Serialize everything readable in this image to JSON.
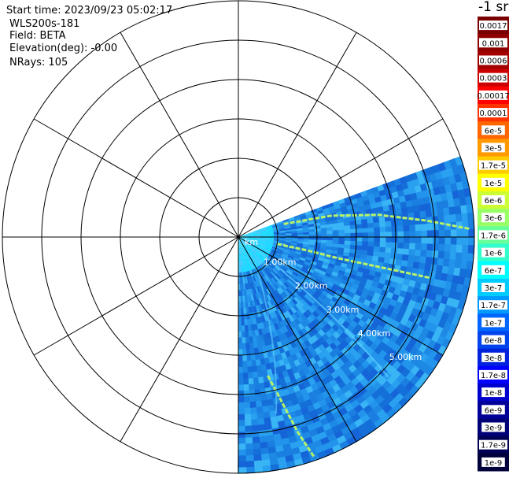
{
  "info": {
    "start_time": "Start time: 2023/09/23 05:02:17",
    "instrument": "WLS200s-181",
    "field": "Field: BETA",
    "elevation": "Elevation(deg): -0.00",
    "nrays": "NRays: 105"
  },
  "colorbar": {
    "unit_label": "-1 sr",
    "ticks": [
      {
        "label": "0.0017",
        "color": "#7a0000"
      },
      {
        "label": "0.001",
        "color": "#8f0000"
      },
      {
        "label": "0.0006",
        "color": "#a30000"
      },
      {
        "label": "0.0003",
        "color": "#cc0000"
      },
      {
        "label": "0.00017",
        "color": "#ff0000"
      },
      {
        "label": "0.0001",
        "color": "#ff3300"
      },
      {
        "label": "6e-5",
        "color": "#ff6600"
      },
      {
        "label": "3e-5",
        "color": "#ff9900"
      },
      {
        "label": "1.7e-5",
        "color": "#ffcc00"
      },
      {
        "label": "1e-5",
        "color": "#ffff00"
      },
      {
        "label": "6e-6",
        "color": "#ccff33"
      },
      {
        "label": "3e-6",
        "color": "#99ff66"
      },
      {
        "label": "1.7e-6",
        "color": "#66ff99"
      },
      {
        "label": "1e-6",
        "color": "#33ffcc"
      },
      {
        "label": "6e-7",
        "color": "#00ffff"
      },
      {
        "label": "3e-7",
        "color": "#00ccff"
      },
      {
        "label": "1.7e-7",
        "color": "#0099ff"
      },
      {
        "label": "1e-7",
        "color": "#0066ff"
      },
      {
        "label": "6e-8",
        "color": "#0044ee"
      },
      {
        "label": "3e-8",
        "color": "#0022dd"
      },
      {
        "label": "1.7e-8",
        "color": "#0000ff"
      },
      {
        "label": "1e-8",
        "color": "#0000cc"
      },
      {
        "label": "6e-9",
        "color": "#000099"
      },
      {
        "label": "3e-9",
        "color": "#000077"
      },
      {
        "label": "1.7e-9",
        "color": "#000055"
      },
      {
        "label": "1e-9",
        "color": "#00003a"
      }
    ]
  },
  "chart_data": {
    "type": "heatmap",
    "projection": "polar PPI",
    "range_rings_km": [
      1,
      2,
      3,
      4,
      5,
      6
    ],
    "range_labels": [
      "km",
      "1.00km",
      "2.00km",
      "3.00km",
      "4.00km",
      "5.00km"
    ],
    "spoke_step_deg": 30,
    "sector_start_azimuth_deg": 70,
    "sector_end_azimuth_deg": 180,
    "max_range_km": 6.0,
    "colors": {
      "dominant": "#1a7fe0",
      "near_range": "#1ad9ff",
      "band": "#b8f26a",
      "grid": "#000000"
    }
  }
}
